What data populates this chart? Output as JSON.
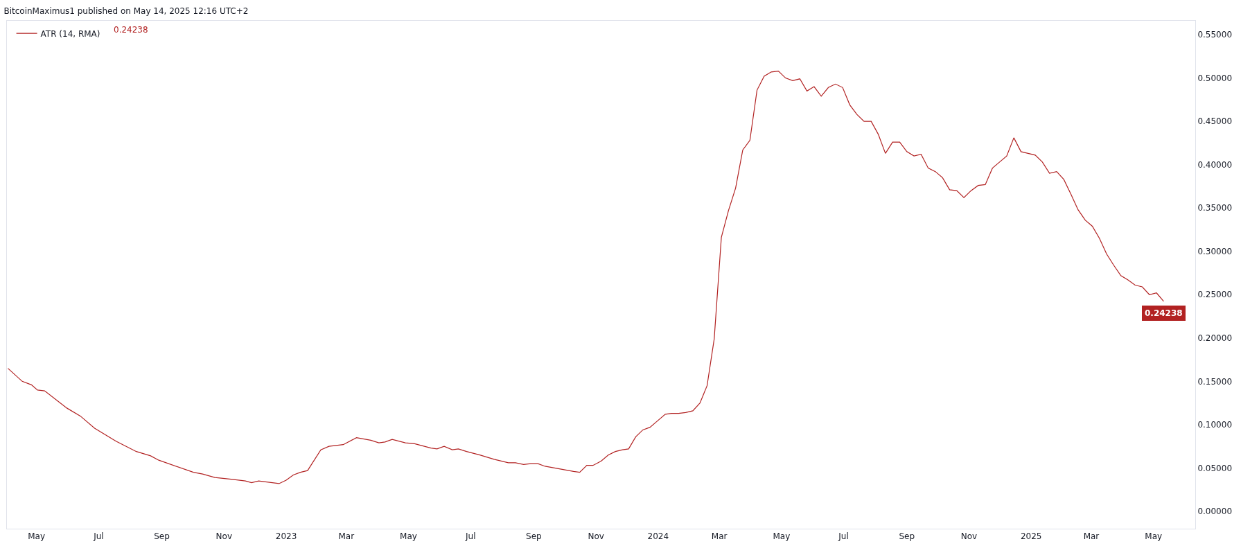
{
  "chart_data": {
    "type": "line",
    "title": "BitcoinMaximus1 published on May 14, 2025 12:16 UTC+2",
    "x": [
      "2022-04-03",
      "2022-04-17",
      "2022-04-26",
      "2022-05-02",
      "2022-05-09",
      "2022-05-31",
      "2022-06-13",
      "2022-06-27",
      "2022-07-18",
      "2022-08-07",
      "2022-08-21",
      "2022-08-29",
      "2022-10-02",
      "2022-10-11",
      "2022-10-23",
      "2022-11-08",
      "2022-11-22",
      "2022-11-28",
      "2022-12-05",
      "2022-12-25",
      "2023-01-01",
      "2023-01-08",
      "2023-01-15",
      "2023-01-22",
      "2023-02-04",
      "2023-02-12",
      "2023-02-26",
      "2023-03-11",
      "2023-03-25",
      "2023-04-02",
      "2023-04-08",
      "2023-04-15",
      "2023-04-28",
      "2023-05-07",
      "2023-05-23",
      "2023-05-29",
      "2023-06-05",
      "2023-06-13",
      "2023-06-19",
      "2023-06-27",
      "2023-07-10",
      "2023-07-24",
      "2023-08-07",
      "2023-08-14",
      "2023-08-22",
      "2023-08-29",
      "2023-09-05",
      "2023-09-12",
      "2023-10-10",
      "2023-10-16",
      "2023-10-23",
      "2023-10-29",
      "2023-11-06",
      "2023-11-13",
      "2023-11-20",
      "2023-11-27",
      "2023-12-03",
      "2023-12-10",
      "2023-12-17",
      "2023-12-24",
      "2023-12-31",
      "2024-01-08",
      "2024-01-14",
      "2024-01-21",
      "2024-01-28",
      "2024-02-04",
      "2024-02-11",
      "2024-02-18",
      "2024-02-25",
      "2024-03-03",
      "2024-03-10",
      "2024-03-17",
      "2024-03-24",
      "2024-03-31",
      "2024-04-07",
      "2024-04-14",
      "2024-04-21",
      "2024-04-28",
      "2024-05-05",
      "2024-05-12",
      "2024-05-19",
      "2024-05-26",
      "2024-06-02",
      "2024-06-09",
      "2024-06-16",
      "2024-06-23",
      "2024-06-30",
      "2024-07-07",
      "2024-07-14",
      "2024-07-21",
      "2024-07-28",
      "2024-08-04",
      "2024-08-11",
      "2024-08-18",
      "2024-08-25",
      "2024-09-01",
      "2024-09-08",
      "2024-09-15",
      "2024-09-22",
      "2024-09-29",
      "2024-10-06",
      "2024-10-13",
      "2024-10-20",
      "2024-10-27",
      "2024-11-03",
      "2024-11-10",
      "2024-11-17",
      "2024-11-24",
      "2024-12-01",
      "2024-12-08",
      "2024-12-15",
      "2024-12-22",
      "2024-12-29",
      "2025-01-05",
      "2025-01-12",
      "2025-01-19",
      "2025-01-26",
      "2025-02-02",
      "2025-02-09",
      "2025-02-16",
      "2025-02-23",
      "2025-03-02",
      "2025-03-09",
      "2025-03-16",
      "2025-03-23",
      "2025-03-30",
      "2025-04-06",
      "2025-04-13",
      "2025-04-20",
      "2025-04-27",
      "2025-05-04",
      "2025-05-11"
    ],
    "series": [
      {
        "name": "ATR (14, RMA)",
        "color": "#b22222",
        "values": [
          0.165,
          0.15,
          0.146,
          0.14,
          0.139,
          0.119,
          0.11,
          0.096,
          0.081,
          0.069,
          0.064,
          0.059,
          0.045,
          0.043,
          0.039,
          0.037,
          0.035,
          0.033,
          0.035,
          0.032,
          0.036,
          0.042,
          0.045,
          0.047,
          0.071,
          0.075,
          0.077,
          0.085,
          0.082,
          0.079,
          0.08,
          0.083,
          0.079,
          0.078,
          0.073,
          0.072,
          0.075,
          0.071,
          0.072,
          0.069,
          0.065,
          0.06,
          0.056,
          0.056,
          0.054,
          0.055,
          0.055,
          0.052,
          0.046,
          0.045,
          0.053,
          0.053,
          0.058,
          0.065,
          0.069,
          0.071,
          0.072,
          0.086,
          0.094,
          0.097,
          0.104,
          0.112,
          0.113,
          0.113,
          0.114,
          0.116,
          0.125,
          0.145,
          0.199,
          0.316,
          0.347,
          0.373,
          0.417,
          0.428,
          0.486,
          0.502,
          0.507,
          0.508,
          0.5,
          0.497,
          0.499,
          0.485,
          0.49,
          0.479,
          0.489,
          0.493,
          0.489,
          0.469,
          0.458,
          0.45,
          0.45,
          0.435,
          0.413,
          0.426,
          0.426,
          0.415,
          0.41,
          0.412,
          0.396,
          0.392,
          0.385,
          0.371,
          0.37,
          0.362,
          0.37,
          0.376,
          0.377,
          0.396,
          0.403,
          0.41,
          0.431,
          0.415,
          0.413,
          0.411,
          0.403,
          0.39,
          0.392,
          0.383,
          0.366,
          0.348,
          0.336,
          0.329,
          0.315,
          0.297,
          0.284,
          0.272,
          0.267,
          0.261,
          0.259,
          0.25,
          0.252,
          0.24238
        ]
      }
    ],
    "annotations": [
      "0.24238",
      {
        "text": "0.24238",
        "x": "2025-05-11",
        "y": 0.24238
      }
    ],
    "xlim": [
      "2022-04-02",
      "2025-06-11"
    ],
    "xticks": [
      {
        "value": "2022-05-01",
        "label": "May"
      },
      {
        "value": "2022-07-01",
        "label": "Jul"
      },
      {
        "value": "2022-09-01",
        "label": "Sep"
      },
      {
        "value": "2022-11-01",
        "label": "Nov"
      },
      {
        "value": "2023-01-01",
        "label": "2023"
      },
      {
        "value": "2023-03-01",
        "label": "Mar"
      },
      {
        "value": "2023-05-01",
        "label": "May"
      },
      {
        "value": "2023-07-01",
        "label": "Jul"
      },
      {
        "value": "2023-09-01",
        "label": "Sep"
      },
      {
        "value": "2023-11-01",
        "label": "Nov"
      },
      {
        "value": "2024-01-01",
        "label": "2024"
      },
      {
        "value": "2024-03-01",
        "label": "Mar"
      },
      {
        "value": "2024-05-01",
        "label": "May"
      },
      {
        "value": "2024-07-01",
        "label": "Jul"
      },
      {
        "value": "2024-09-01",
        "label": "Sep"
      },
      {
        "value": "2024-11-01",
        "label": "Nov"
      },
      {
        "value": "2025-01-01",
        "label": "2025"
      },
      {
        "value": "2025-03-01",
        "label": "Mar"
      },
      {
        "value": "2025-05-01",
        "label": "May"
      }
    ],
    "ylim": [
      -0.02,
      0.566
    ],
    "yticks": [
      {
        "value": 0,
        "label": "0.00000"
      },
      {
        "value": 0.05,
        "label": "0.05000"
      },
      {
        "value": 0.1,
        "label": "0.10000"
      },
      {
        "value": 0.15,
        "label": "0.15000"
      },
      {
        "value": 0.2,
        "label": "0.20000"
      },
      {
        "value": 0.25,
        "label": "0.25000"
      },
      {
        "value": 0.3,
        "label": "0.30000"
      },
      {
        "value": 0.35,
        "label": "0.35000"
      },
      {
        "value": 0.4,
        "label": "0.40000"
      },
      {
        "value": 0.45,
        "label": "0.45000"
      },
      {
        "value": 0.5,
        "label": "0.50000"
      },
      {
        "value": 0.55,
        "label": "0.55000"
      }
    ],
    "legend": "top left",
    "marker": "none",
    "line_style": "solid"
  }
}
